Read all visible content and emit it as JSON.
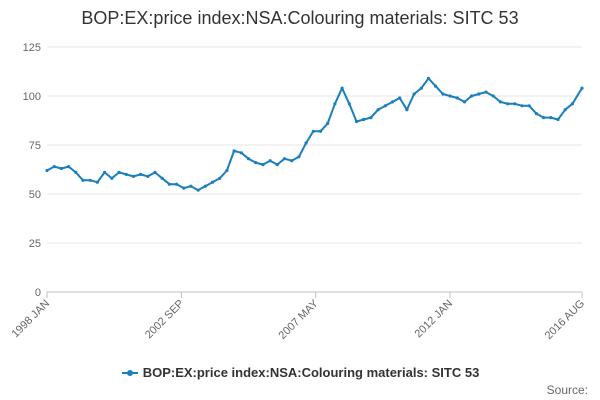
{
  "chart_data": {
    "type": "line",
    "title": "BOP:EX:price index:NSA:Colouring materials: SITC 53",
    "xlabel": "",
    "ylabel": "",
    "ylim": [
      0,
      125
    ],
    "yticks": [
      0,
      25,
      50,
      75,
      100,
      125
    ],
    "xtick_labels": [
      {
        "label": "1998 JAN",
        "t": 1998.0
      },
      {
        "label": "2002 SEP",
        "t": 2002.667
      },
      {
        "label": "2007 MAY",
        "t": 2007.333
      },
      {
        "label": "2012 JAN",
        "t": 2012.0
      },
      {
        "label": "2016 AUG",
        "t": 2016.583
      }
    ],
    "xlim": [
      1998.0,
      2016.583
    ],
    "series": [
      {
        "name": "BOP:EX:price index:NSA:Colouring materials: SITC 53",
        "color": "#1b7fbd",
        "x": [
          1998.0,
          1998.25,
          1998.5,
          1998.75,
          1999.0,
          1999.25,
          1999.5,
          1999.75,
          2000.0,
          2000.25,
          2000.5,
          2000.75,
          2001.0,
          2001.25,
          2001.5,
          2001.75,
          2002.0,
          2002.25,
          2002.5,
          2002.75,
          2003.0,
          2003.25,
          2003.5,
          2003.75,
          2004.0,
          2004.25,
          2004.5,
          2004.75,
          2005.0,
          2005.25,
          2005.5,
          2005.75,
          2006.0,
          2006.25,
          2006.5,
          2006.75,
          2007.0,
          2007.25,
          2007.5,
          2007.75,
          2008.0,
          2008.25,
          2008.5,
          2008.75,
          2009.0,
          2009.25,
          2009.5,
          2009.75,
          2010.0,
          2010.25,
          2010.5,
          2010.75,
          2011.0,
          2011.25,
          2011.5,
          2011.75,
          2012.0,
          2012.25,
          2012.5,
          2012.75,
          2013.0,
          2013.25,
          2013.5,
          2013.75,
          2014.0,
          2014.25,
          2014.5,
          2014.75,
          2015.0,
          2015.25,
          2015.5,
          2015.75,
          2016.0,
          2016.25,
          2016.583
        ],
        "values": [
          62,
          64,
          63,
          64,
          61,
          57,
          57,
          56,
          61,
          58,
          61,
          60,
          59,
          60,
          59,
          61,
          58,
          55,
          55,
          53,
          54,
          52,
          54,
          56,
          58,
          62,
          72,
          71,
          68,
          66,
          65,
          67,
          65,
          68,
          67,
          69,
          76,
          82,
          82,
          86,
          96,
          104,
          96,
          87,
          88,
          89,
          93,
          95,
          97,
          99,
          93,
          101,
          104,
          109,
          105,
          101,
          100,
          99,
          97,
          100,
          101,
          102,
          100,
          97,
          96,
          96,
          95,
          95,
          91,
          89,
          89,
          88,
          93,
          96,
          104
        ]
      }
    ]
  },
  "legend": {
    "label": "BOP:EX:price index:NSA:Colouring materials: SITC 53"
  },
  "source": {
    "label": "Source:"
  }
}
